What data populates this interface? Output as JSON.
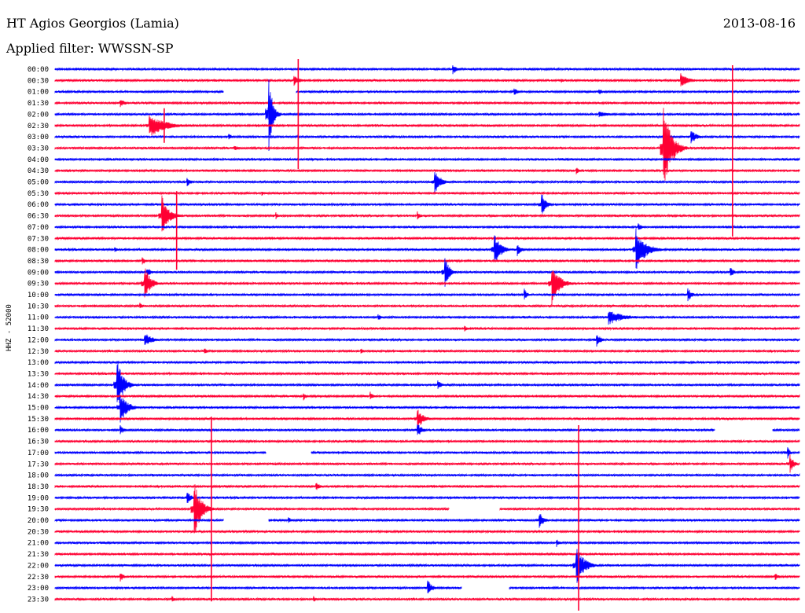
{
  "header": {
    "station": "HT Agios Georgios (Lamia)",
    "date": "2013-08-16",
    "filter": "Applied filter: WWSSN-SP"
  },
  "chart_data": {
    "type": "line",
    "ylabel": "HHZ - 52000",
    "grid": false,
    "trace_colors": [
      "#0000ff",
      "#ff0033"
    ],
    "rows": [
      "00:00",
      "00:30",
      "01:00",
      "01:30",
      "02:00",
      "02:30",
      "03:00",
      "03:30",
      "04:00",
      "04:30",
      "05:00",
      "05:30",
      "06:00",
      "06:30",
      "07:00",
      "07:30",
      "08:00",
      "08:30",
      "09:00",
      "09:30",
      "10:00",
      "10:30",
      "11:00",
      "11:30",
      "12:00",
      "12:30",
      "13:00",
      "13:30",
      "14:00",
      "14:30",
      "15:00",
      "15:30",
      "16:00",
      "16:30",
      "17:00",
      "17:30",
      "18:00",
      "18:30",
      "19:00",
      "19:30",
      "20:00",
      "20:30",
      "21:00",
      "21:30",
      "22:00",
      "22:30",
      "23:00",
      "23:30"
    ],
    "x_unit": "minutes",
    "xlim": [
      0,
      30
    ],
    "events": [
      {
        "row": 0,
        "t": 16.0,
        "amp": 8,
        "dur": 0.6
      },
      {
        "row": 1,
        "t": 9.6,
        "amp": 8,
        "dur": 0.8
      },
      {
        "row": 1,
        "t": 25.2,
        "amp": 10,
        "dur": 1.0
      },
      {
        "row": 1,
        "t": 20.4,
        "amp": 3,
        "dur": 0.4
      },
      {
        "row": 2,
        "t": 18.5,
        "amp": 6,
        "dur": 0.5
      },
      {
        "row": 2,
        "t": 21.9,
        "amp": 5,
        "dur": 0.5
      },
      {
        "row": 3,
        "t": 2.6,
        "amp": 7,
        "dur": 0.6
      },
      {
        "row": 4,
        "t": 8.6,
        "amp": 60,
        "dur": 0.5
      },
      {
        "row": 4,
        "t": 21.9,
        "amp": 4,
        "dur": 1.5
      },
      {
        "row": 5,
        "t": 3.8,
        "amp": 16,
        "dur": 2.0
      },
      {
        "row": 6,
        "t": 25.6,
        "amp": 10,
        "dur": 0.8
      },
      {
        "row": 6,
        "t": 7.0,
        "amp": 5,
        "dur": 0.5
      },
      {
        "row": 7,
        "t": 7.2,
        "amp": 4,
        "dur": 0.8
      },
      {
        "row": 7,
        "t": 24.5,
        "amp": 65,
        "dur": 1.0
      },
      {
        "row": 9,
        "t": 21.0,
        "amp": 5,
        "dur": 0.4
      },
      {
        "row": 10,
        "t": 5.3,
        "amp": 7,
        "dur": 0.5
      },
      {
        "row": 10,
        "t": 15.3,
        "amp": 16,
        "dur": 0.8
      },
      {
        "row": 11,
        "t": 8.3,
        "amp": 4,
        "dur": 0.5
      },
      {
        "row": 12,
        "t": 19.6,
        "amp": 16,
        "dur": 0.6
      },
      {
        "row": 13,
        "t": 4.3,
        "amp": 28,
        "dur": 0.9
      },
      {
        "row": 13,
        "t": 14.6,
        "amp": 6,
        "dur": 0.4
      },
      {
        "row": 13,
        "t": 8.9,
        "amp": 5,
        "dur": 0.3
      },
      {
        "row": 14,
        "t": 23.5,
        "amp": 5,
        "dur": 0.6
      },
      {
        "row": 16,
        "t": 17.7,
        "amp": 24,
        "dur": 0.8
      },
      {
        "row": 16,
        "t": 18.6,
        "amp": 10,
        "dur": 0.5
      },
      {
        "row": 16,
        "t": 2.4,
        "amp": 4,
        "dur": 0.4
      },
      {
        "row": 16,
        "t": 23.4,
        "amp": 28,
        "dur": 1.3
      },
      {
        "row": 17,
        "t": 3.5,
        "amp": 6,
        "dur": 0.5
      },
      {
        "row": 18,
        "t": 15.7,
        "amp": 22,
        "dur": 0.6
      },
      {
        "row": 18,
        "t": 3.7,
        "amp": 7,
        "dur": 0.6
      },
      {
        "row": 18,
        "t": 27.2,
        "amp": 8,
        "dur": 0.5
      },
      {
        "row": 19,
        "t": 3.6,
        "amp": 24,
        "dur": 0.8
      },
      {
        "row": 19,
        "t": 20.0,
        "amp": 30,
        "dur": 1.0
      },
      {
        "row": 20,
        "t": 18.9,
        "amp": 9,
        "dur": 0.4
      },
      {
        "row": 20,
        "t": 25.5,
        "amp": 10,
        "dur": 0.5
      },
      {
        "row": 21,
        "t": 3.4,
        "amp": 6,
        "dur": 0.4
      },
      {
        "row": 22,
        "t": 13.0,
        "amp": 6,
        "dur": 0.4
      },
      {
        "row": 22,
        "t": 22.3,
        "amp": 10,
        "dur": 2.0
      },
      {
        "row": 23,
        "t": 16.5,
        "amp": 4,
        "dur": 0.4
      },
      {
        "row": 24,
        "t": 3.6,
        "amp": 10,
        "dur": 1.0
      },
      {
        "row": 24,
        "t": 21.8,
        "amp": 10,
        "dur": 0.6
      },
      {
        "row": 25,
        "t": 6.0,
        "amp": 5,
        "dur": 0.4
      },
      {
        "row": 25,
        "t": 12.3,
        "amp": 5,
        "dur": 0.4
      },
      {
        "row": 28,
        "t": 2.5,
        "amp": 36,
        "dur": 0.8
      },
      {
        "row": 28,
        "t": 15.4,
        "amp": 8,
        "dur": 0.5
      },
      {
        "row": 29,
        "t": 10.0,
        "amp": 6,
        "dur": 0.4
      },
      {
        "row": 29,
        "t": 12.7,
        "amp": 6,
        "dur": 0.4
      },
      {
        "row": 30,
        "t": 2.6,
        "amp": 22,
        "dur": 1.0
      },
      {
        "row": 31,
        "t": 14.6,
        "amp": 14,
        "dur": 0.8
      },
      {
        "row": 32,
        "t": 2.6,
        "amp": 8,
        "dur": 0.5
      },
      {
        "row": 32,
        "t": 14.6,
        "amp": 10,
        "dur": 0.6
      },
      {
        "row": 34,
        "t": 29.5,
        "amp": 12,
        "dur": 0.3
      },
      {
        "row": 35,
        "t": 29.6,
        "amp": 14,
        "dur": 0.5
      },
      {
        "row": 37,
        "t": 10.5,
        "amp": 6,
        "dur": 0.6
      },
      {
        "row": 38,
        "t": 5.3,
        "amp": 10,
        "dur": 0.6
      },
      {
        "row": 39,
        "t": 5.6,
        "amp": 38,
        "dur": 0.9
      },
      {
        "row": 40,
        "t": 19.5,
        "amp": 12,
        "dur": 0.6
      },
      {
        "row": 40,
        "t": 9.4,
        "amp": 5,
        "dur": 0.4
      },
      {
        "row": 42,
        "t": 20.2,
        "amp": 6,
        "dur": 0.4
      },
      {
        "row": 44,
        "t": 21.0,
        "amp": 28,
        "dur": 1.0
      },
      {
        "row": 45,
        "t": 2.6,
        "amp": 8,
        "dur": 0.5
      },
      {
        "row": 45,
        "t": 29.0,
        "amp": 6,
        "dur": 0.5
      },
      {
        "row": 46,
        "t": 15.0,
        "amp": 12,
        "dur": 0.6
      },
      {
        "row": 47,
        "t": 4.7,
        "amp": 5,
        "dur": 0.4
      },
      {
        "row": 47,
        "t": 10.4,
        "amp": 5,
        "dur": 0.4
      }
    ],
    "spikes": [
      {
        "row": 3,
        "t": 9.8,
        "up": 56,
        "down": 84
      },
      {
        "row": 5,
        "t": 4.4,
        "up": 22,
        "down": 22
      },
      {
        "row": 3,
        "t": 27.3,
        "up": 48,
        "down": 170
      },
      {
        "row": 15,
        "t": 4.9,
        "up": 60,
        "down": 40
      },
      {
        "row": 35,
        "t": 6.3,
        "up": 60,
        "down": 175
      },
      {
        "row": 37,
        "t": 21.1,
        "up": 78,
        "down": 158
      }
    ],
    "gaps": [
      {
        "row": 2,
        "t0": 6.8,
        "t1": 9.7
      },
      {
        "row": 34,
        "t0": 8.5,
        "t1": 10.3
      },
      {
        "row": 40,
        "t0": 6.8,
        "t1": 8.6
      },
      {
        "row": 39,
        "t0": 15.9,
        "t1": 17.9
      },
      {
        "row": 46,
        "t0": 16.4,
        "t1": 18.3
      },
      {
        "row": 32,
        "t0": 26.6,
        "t1": 28.9
      }
    ]
  }
}
